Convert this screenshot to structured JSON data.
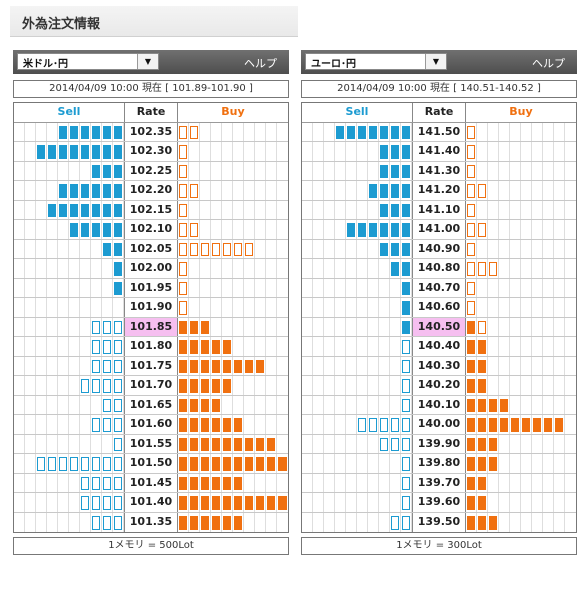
{
  "page": {
    "title": "外為注文情報"
  },
  "panels": [
    {
      "pair": "米ドル･円",
      "help": "ヘルプ",
      "quote": "2014/04/09  10:00 現在 [ 101.89-101.90 ]",
      "header": {
        "sell": "Sell",
        "rate": "Rate",
        "buy": "Buy"
      },
      "footer": "1メモリ = 500Lot",
      "current_rate": "101.85",
      "rows": [
        {
          "rate": "102.35",
          "sell_filled": 6,
          "sell_outline": 0,
          "buy_filled": 0,
          "buy_outline": 2
        },
        {
          "rate": "102.30",
          "sell_filled": 8,
          "sell_outline": 0,
          "buy_filled": 0,
          "buy_outline": 1
        },
        {
          "rate": "102.25",
          "sell_filled": 3,
          "sell_outline": 0,
          "buy_filled": 0,
          "buy_outline": 1
        },
        {
          "rate": "102.20",
          "sell_filled": 6,
          "sell_outline": 0,
          "buy_filled": 0,
          "buy_outline": 2
        },
        {
          "rate": "102.15",
          "sell_filled": 7,
          "sell_outline": 0,
          "buy_filled": 0,
          "buy_outline": 1
        },
        {
          "rate": "102.10",
          "sell_filled": 5,
          "sell_outline": 0,
          "buy_filled": 0,
          "buy_outline": 2
        },
        {
          "rate": "102.05",
          "sell_filled": 2,
          "sell_outline": 0,
          "buy_filled": 0,
          "buy_outline": 7
        },
        {
          "rate": "102.00",
          "sell_filled": 1,
          "sell_outline": 0,
          "buy_filled": 0,
          "buy_outline": 1
        },
        {
          "rate": "101.95",
          "sell_filled": 1,
          "sell_outline": 0,
          "buy_filled": 0,
          "buy_outline": 1
        },
        {
          "rate": "101.90",
          "sell_filled": 0,
          "sell_outline": 0,
          "buy_filled": 0,
          "buy_outline": 1
        },
        {
          "rate": "101.85",
          "sell_filled": 0,
          "sell_outline": 3,
          "buy_filled": 3,
          "buy_outline": 0
        },
        {
          "rate": "101.80",
          "sell_filled": 0,
          "sell_outline": 3,
          "buy_filled": 5,
          "buy_outline": 0
        },
        {
          "rate": "101.75",
          "sell_filled": 0,
          "sell_outline": 3,
          "buy_filled": 8,
          "buy_outline": 0
        },
        {
          "rate": "101.70",
          "sell_filled": 0,
          "sell_outline": 4,
          "buy_filled": 5,
          "buy_outline": 0
        },
        {
          "rate": "101.65",
          "sell_filled": 0,
          "sell_outline": 2,
          "buy_filled": 4,
          "buy_outline": 0
        },
        {
          "rate": "101.60",
          "sell_filled": 0,
          "sell_outline": 3,
          "buy_filled": 6,
          "buy_outline": 0
        },
        {
          "rate": "101.55",
          "sell_filled": 0,
          "sell_outline": 1,
          "buy_filled": 9,
          "buy_outline": 0
        },
        {
          "rate": "101.50",
          "sell_filled": 0,
          "sell_outline": 8,
          "buy_filled": 10,
          "buy_outline": 0
        },
        {
          "rate": "101.45",
          "sell_filled": 0,
          "sell_outline": 4,
          "buy_filled": 6,
          "buy_outline": 0
        },
        {
          "rate": "101.40",
          "sell_filled": 0,
          "sell_outline": 4,
          "buy_filled": 10,
          "buy_outline": 0
        },
        {
          "rate": "101.35",
          "sell_filled": 0,
          "sell_outline": 3,
          "buy_filled": 6,
          "buy_outline": 0
        }
      ]
    },
    {
      "pair": "ユーロ･円",
      "help": "ヘルプ",
      "quote": "2014/04/09  10:00 現在 [ 140.51-140.52 ]",
      "header": {
        "sell": "Sell",
        "rate": "Rate",
        "buy": "Buy"
      },
      "footer": "1メモリ = 300Lot",
      "current_rate": "140.50",
      "rows": [
        {
          "rate": "141.50",
          "sell_filled": 7,
          "sell_outline": 0,
          "buy_filled": 0,
          "buy_outline": 1
        },
        {
          "rate": "141.40",
          "sell_filled": 3,
          "sell_outline": 0,
          "buy_filled": 0,
          "buy_outline": 1
        },
        {
          "rate": "141.30",
          "sell_filled": 3,
          "sell_outline": 0,
          "buy_filled": 0,
          "buy_outline": 1
        },
        {
          "rate": "141.20",
          "sell_filled": 4,
          "sell_outline": 0,
          "buy_filled": 0,
          "buy_outline": 2
        },
        {
          "rate": "141.10",
          "sell_filled": 3,
          "sell_outline": 0,
          "buy_filled": 0,
          "buy_outline": 1
        },
        {
          "rate": "141.00",
          "sell_filled": 6,
          "sell_outline": 0,
          "buy_filled": 0,
          "buy_outline": 2
        },
        {
          "rate": "140.90",
          "sell_filled": 3,
          "sell_outline": 0,
          "buy_filled": 0,
          "buy_outline": 1
        },
        {
          "rate": "140.80",
          "sell_filled": 2,
          "sell_outline": 0,
          "buy_filled": 0,
          "buy_outline": 3
        },
        {
          "rate": "140.70",
          "sell_filled": 1,
          "sell_outline": 0,
          "buy_filled": 0,
          "buy_outline": 1
        },
        {
          "rate": "140.60",
          "sell_filled": 1,
          "sell_outline": 0,
          "buy_filled": 0,
          "buy_outline": 1
        },
        {
          "rate": "140.50",
          "sell_filled": 1,
          "sell_outline": 0,
          "buy_filled": 1,
          "buy_outline": 1
        },
        {
          "rate": "140.40",
          "sell_filled": 0,
          "sell_outline": 1,
          "buy_filled": 2,
          "buy_outline": 0
        },
        {
          "rate": "140.30",
          "sell_filled": 0,
          "sell_outline": 1,
          "buy_filled": 2,
          "buy_outline": 0
        },
        {
          "rate": "140.20",
          "sell_filled": 0,
          "sell_outline": 1,
          "buy_filled": 2,
          "buy_outline": 0
        },
        {
          "rate": "140.10",
          "sell_filled": 0,
          "sell_outline": 1,
          "buy_filled": 4,
          "buy_outline": 0
        },
        {
          "rate": "140.00",
          "sell_filled": 0,
          "sell_outline": 5,
          "buy_filled": 9,
          "buy_outline": 0
        },
        {
          "rate": "139.90",
          "sell_filled": 0,
          "sell_outline": 3,
          "buy_filled": 3,
          "buy_outline": 0
        },
        {
          "rate": "139.80",
          "sell_filled": 0,
          "sell_outline": 1,
          "buy_filled": 3,
          "buy_outline": 0
        },
        {
          "rate": "139.70",
          "sell_filled": 0,
          "sell_outline": 1,
          "buy_filled": 2,
          "buy_outline": 0
        },
        {
          "rate": "139.60",
          "sell_filled": 0,
          "sell_outline": 1,
          "buy_filled": 2,
          "buy_outline": 0
        },
        {
          "rate": "139.50",
          "sell_filled": 0,
          "sell_outline": 2,
          "buy_filled": 3,
          "buy_outline": 0
        }
      ]
    }
  ]
}
